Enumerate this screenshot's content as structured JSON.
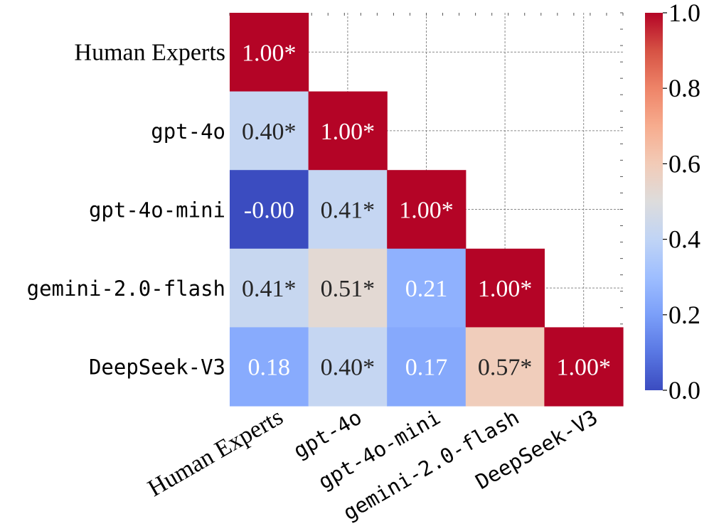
{
  "chart_data": {
    "type": "heatmap",
    "title": "",
    "xlabel": "",
    "ylabel": "",
    "rows": [
      "Human Experts",
      "gpt-4o",
      "gpt-4o-mini",
      "gemini-2.0-flash",
      "DeepSeek-V3"
    ],
    "columns": [
      "Human Experts",
      "gpt-4o",
      "gpt-4o-mini",
      "gemini-2.0-flash",
      "DeepSeek-V3"
    ],
    "matrix": [
      [
        1.0,
        null,
        null,
        null,
        null
      ],
      [
        0.4,
        1.0,
        null,
        null,
        null
      ],
      [
        -0.0,
        0.41,
        1.0,
        null,
        null
      ],
      [
        0.41,
        0.51,
        0.21,
        1.0,
        null
      ],
      [
        0.18,
        0.4,
        0.17,
        0.57,
        1.0
      ]
    ],
    "cell_labels": [
      [
        "1.00*",
        "",
        "",
        "",
        ""
      ],
      [
        "0.40*",
        "1.00*",
        "",
        "",
        ""
      ],
      [
        "-0.00",
        "0.41*",
        "1.00*",
        "",
        ""
      ],
      [
        "0.41*",
        "0.51*",
        "0.21",
        "1.00*",
        ""
      ],
      [
        "0.18",
        "0.40*",
        "0.17",
        "0.57*",
        "1.00*"
      ]
    ],
    "mask": "upper-triangle",
    "colormap": "coolwarm",
    "colorbar": {
      "vmin": 0.0,
      "vmax": 1.0,
      "ticks": [
        0.0,
        0.2,
        0.4,
        0.6,
        0.8,
        1.0
      ],
      "tick_labels": [
        "0.0",
        "0.2",
        "0.4",
        "0.6",
        "0.8",
        "1.0"
      ],
      "placement": "right"
    },
    "grid": true,
    "grid_style": "dashed",
    "cell_colors": [
      [
        "#b40426",
        null,
        null,
        null,
        null
      ],
      [
        "#c5d6f2",
        "#b40426",
        null,
        null,
        null
      ],
      [
        "#3b4cc0",
        "#c5d6f2",
        "#b40426",
        null,
        null
      ],
      [
        "#c7d7f0",
        "#e3d9d3",
        "#8fb1fe",
        "#b40426",
        null
      ],
      [
        "#88abfd",
        "#c5d6f2",
        "#86a9fc",
        "#f0cdbb",
        "#b40426"
      ]
    ]
  }
}
